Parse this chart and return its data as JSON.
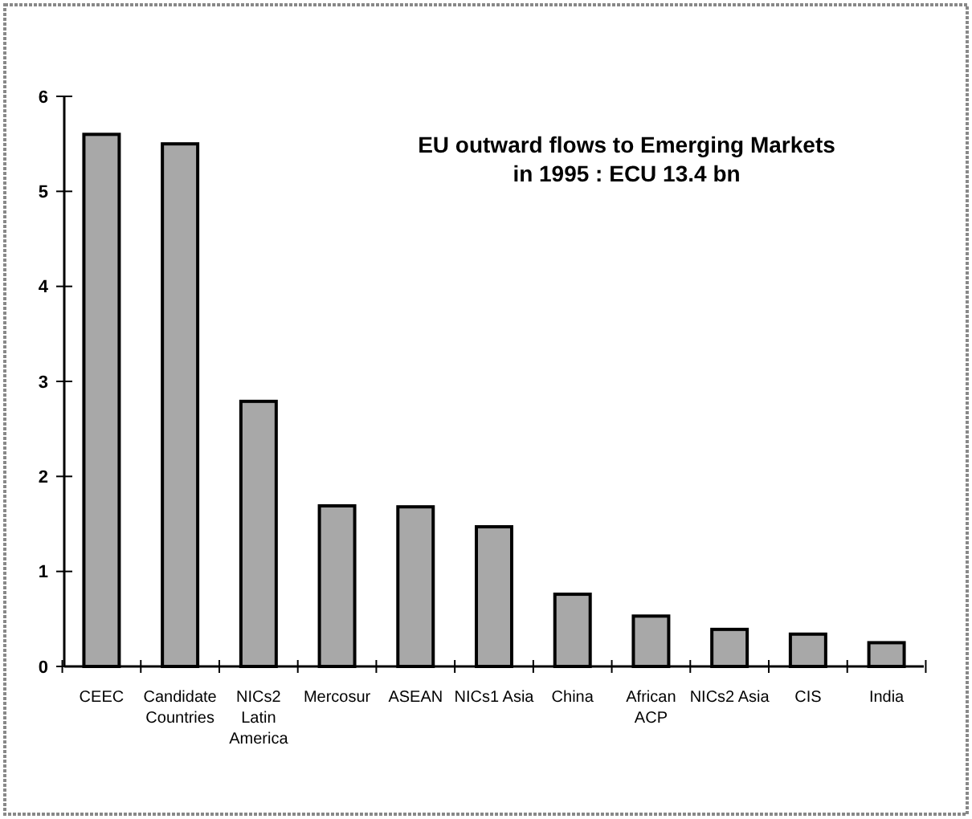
{
  "chart_data": {
    "type": "bar",
    "title": "EU outward flows to Emerging Markets in 1995 : ECU 13.4 bn",
    "categories": [
      "CEEC",
      "Candidate Countries",
      "NICs2 Latin America",
      "Mercosur",
      "ASEAN",
      "NICs1 Asia",
      "China",
      "African ACP",
      "NICs2 Asia",
      "CIS",
      "India"
    ],
    "values": [
      5.6,
      5.5,
      2.79,
      1.69,
      1.68,
      1.47,
      0.76,
      0.53,
      0.39,
      0.34,
      0.25
    ],
    "color": "#a8a8a8",
    "ylim": [
      0,
      6
    ],
    "yticks": [
      0,
      1,
      2,
      3,
      4,
      5,
      6
    ],
    "grid": false
  }
}
